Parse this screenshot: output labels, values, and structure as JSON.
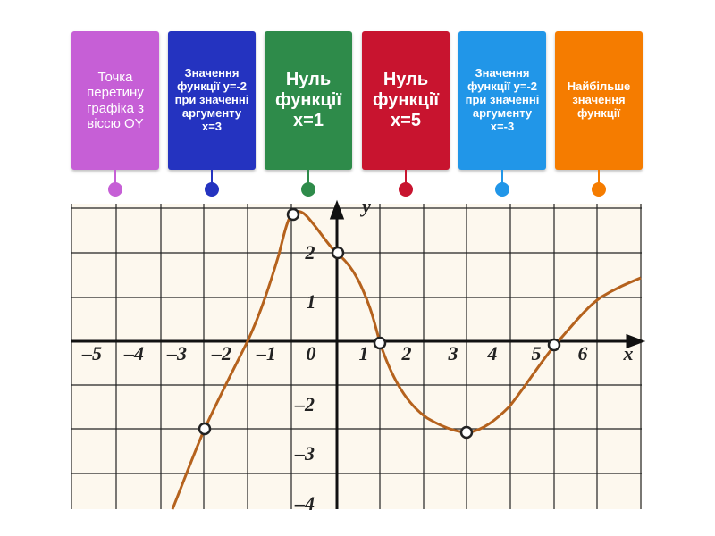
{
  "cards": [
    {
      "label": "Точка перетину графіка з віссю ОY"
    },
    {
      "label": "Значення функції y=-2 при значенні аргументу x=3"
    },
    {
      "label": "Нуль функції x=1"
    },
    {
      "label": "Нуль функції x=5"
    },
    {
      "label": "Значення функції y=-2 при значенні аргументу x=-3"
    },
    {
      "label": "Найбільше значення функції"
    }
  ],
  "graph": {
    "x_tick_labels": [
      "–5",
      "–4",
      "–3",
      "–2",
      "–1",
      "0",
      "1",
      "2",
      "3",
      "4",
      "5",
      "6"
    ],
    "x_axis_label": "x",
    "y_tick_labels": [
      "2",
      "1",
      "–2",
      "–3",
      "–4"
    ],
    "y_axis_label": "y"
  }
}
